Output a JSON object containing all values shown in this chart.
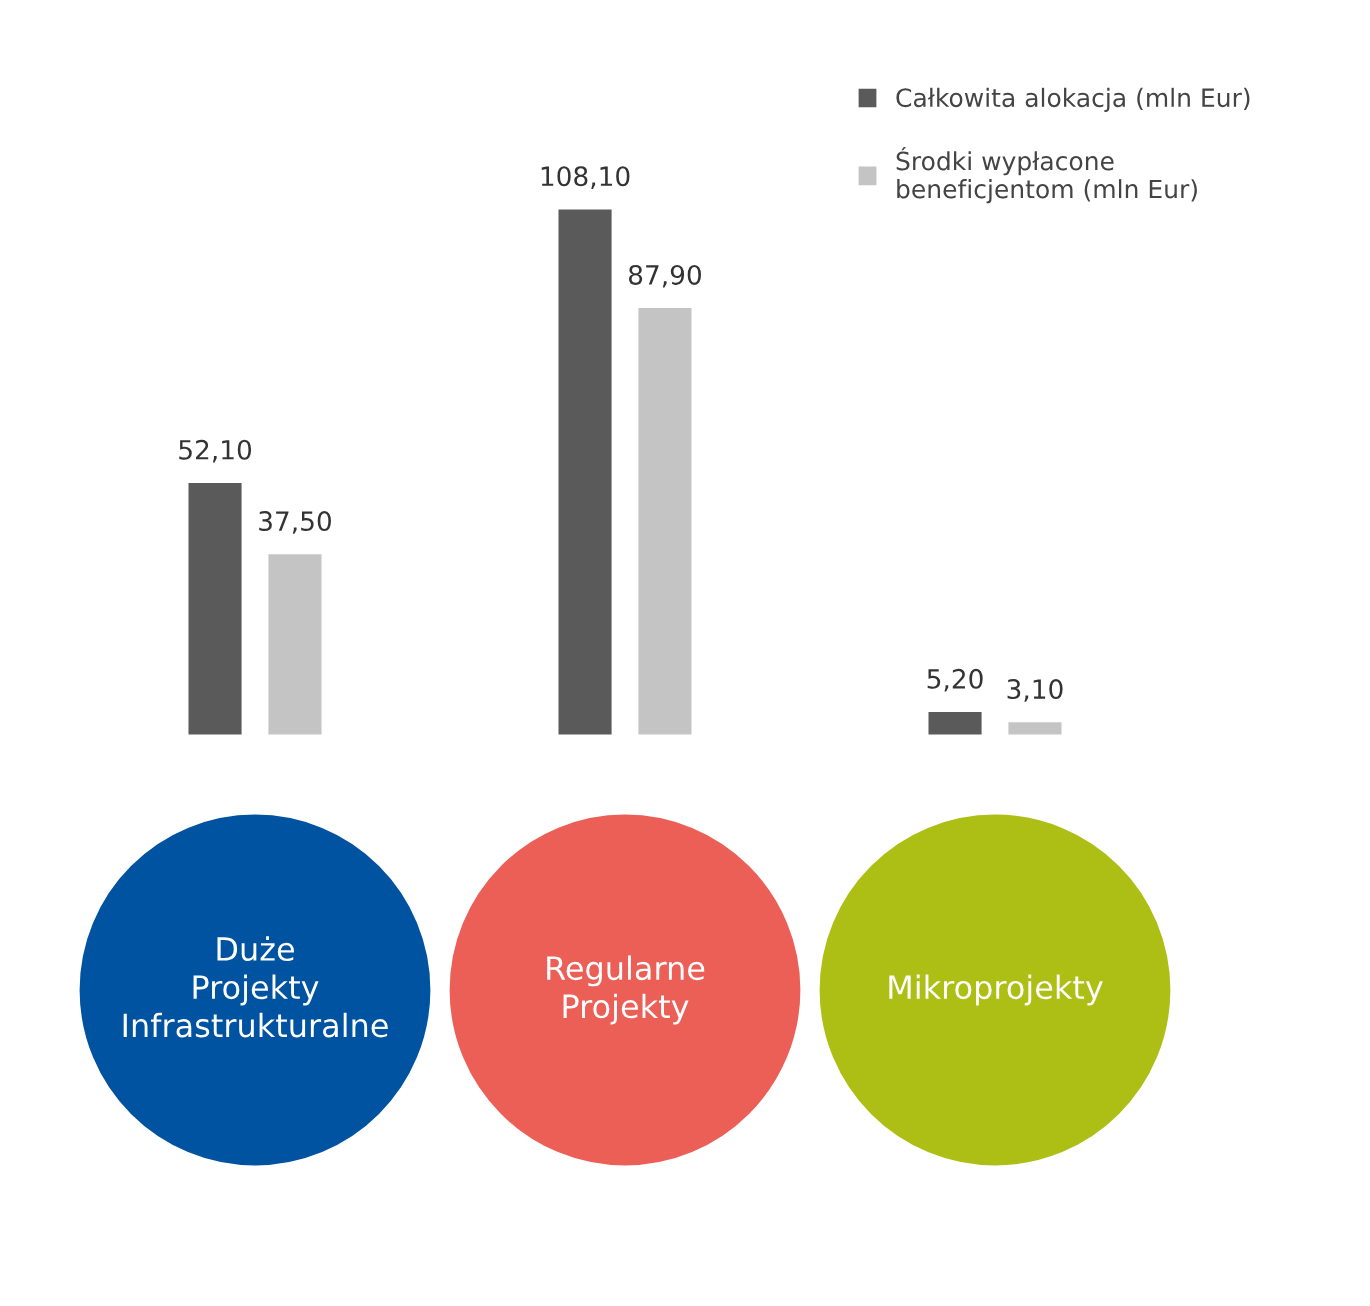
{
  "chart_data": {
    "type": "bar",
    "categories": [
      "Duże\nProjekty\nInfrastrukturalne",
      "Regularne\nProjekty",
      "Mikroprojekty"
    ],
    "series": [
      {
        "name": "Całkowita alokacja (mln Eur)",
        "color": "#5a5a5a",
        "values": [
          52.1,
          108.1,
          5.2
        ],
        "value_labels": [
          "52,10",
          "108,10",
          "5,20"
        ]
      },
      {
        "name": "Środki wypłacone\nbeneficjentom (mln Eur)",
        "color": "#c4c4c4",
        "values": [
          37.5,
          87.9,
          3.1
        ],
        "value_labels": [
          "37,50",
          "87,90",
          "3,10"
        ]
      }
    ],
    "legend": "top right"
  }
}
